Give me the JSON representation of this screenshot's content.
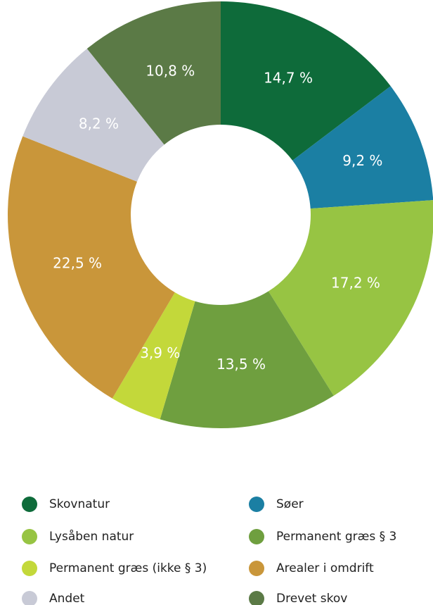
{
  "chart_data": {
    "type": "donut",
    "categories": [
      "Skovnatur",
      "Søer",
      "Lysåben natur",
      "Permanent græs § 3",
      "Permanent græs (ikke § 3)",
      "Arealer i omdrift",
      "Andet",
      "Drevet skov"
    ],
    "values": [
      14.7,
      9.2,
      17.2,
      13.5,
      3.9,
      22.5,
      8.2,
      10.8
    ],
    "value_labels": [
      "14,7 %",
      "9,2 %",
      "17,2 %",
      "13,5 %",
      "3,9 %",
      "22,5 %",
      "8,2 %",
      "10,8 %"
    ],
    "colors": [
      "#0e6b3a",
      "#1b7fa3",
      "#97c443",
      "#6f9f3f",
      "#c3d83a",
      "#c9963a",
      "#c8cad6",
      "#5b7a46"
    ],
    "legend": "bottom"
  }
}
